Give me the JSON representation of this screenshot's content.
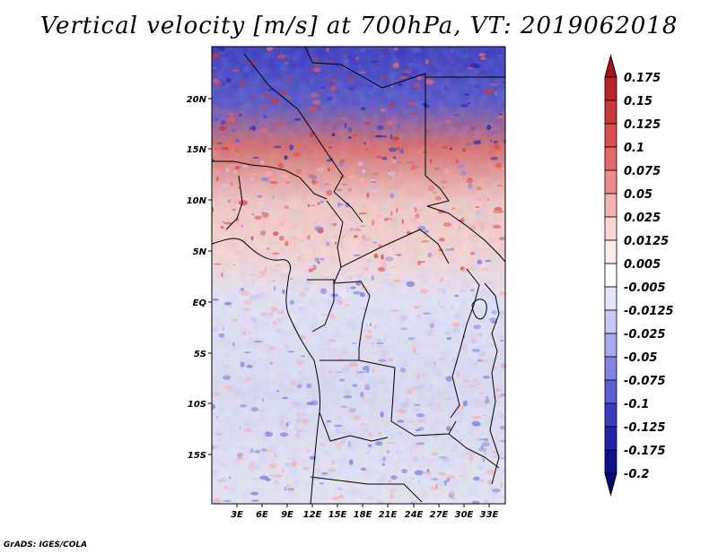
{
  "title": "Vertical velocity [m/s] at 700hPa, VT: 2019062018",
  "credit": "GrADS: IGES/COLA",
  "map": {
    "lat_labels": [
      "20N",
      "15N",
      "10N",
      "5N",
      "EQ",
      "5S",
      "10S",
      "15S"
    ],
    "lon_labels": [
      "3E",
      "6E",
      "9E",
      "12E",
      "15E",
      "18E",
      "21E",
      "24E",
      "27E",
      "30E",
      "33E"
    ]
  },
  "colorbar": {
    "levels": [
      "0.175",
      "0.15",
      "0.125",
      "0.1",
      "0.075",
      "0.05",
      "0.025",
      "0.0125",
      "0.005",
      "-0.005",
      "-0.0125",
      "-0.025",
      "-0.05",
      "-0.075",
      "-0.1",
      "-0.125",
      "-0.175",
      "-0.2"
    ],
    "colors": [
      "#a3141c",
      "#b8262a",
      "#c93a3a",
      "#d85050",
      "#e46a6a",
      "#ee8c8c",
      "#f5b0b0",
      "#fbd4d4",
      "#ffeded",
      "#ffffff",
      "#e4e4fb",
      "#c8c8f4",
      "#a8a8ec",
      "#8484e0",
      "#5f5fd2",
      "#3c3cc0",
      "#2323a8",
      "#10108a",
      "#06067a"
    ]
  }
}
